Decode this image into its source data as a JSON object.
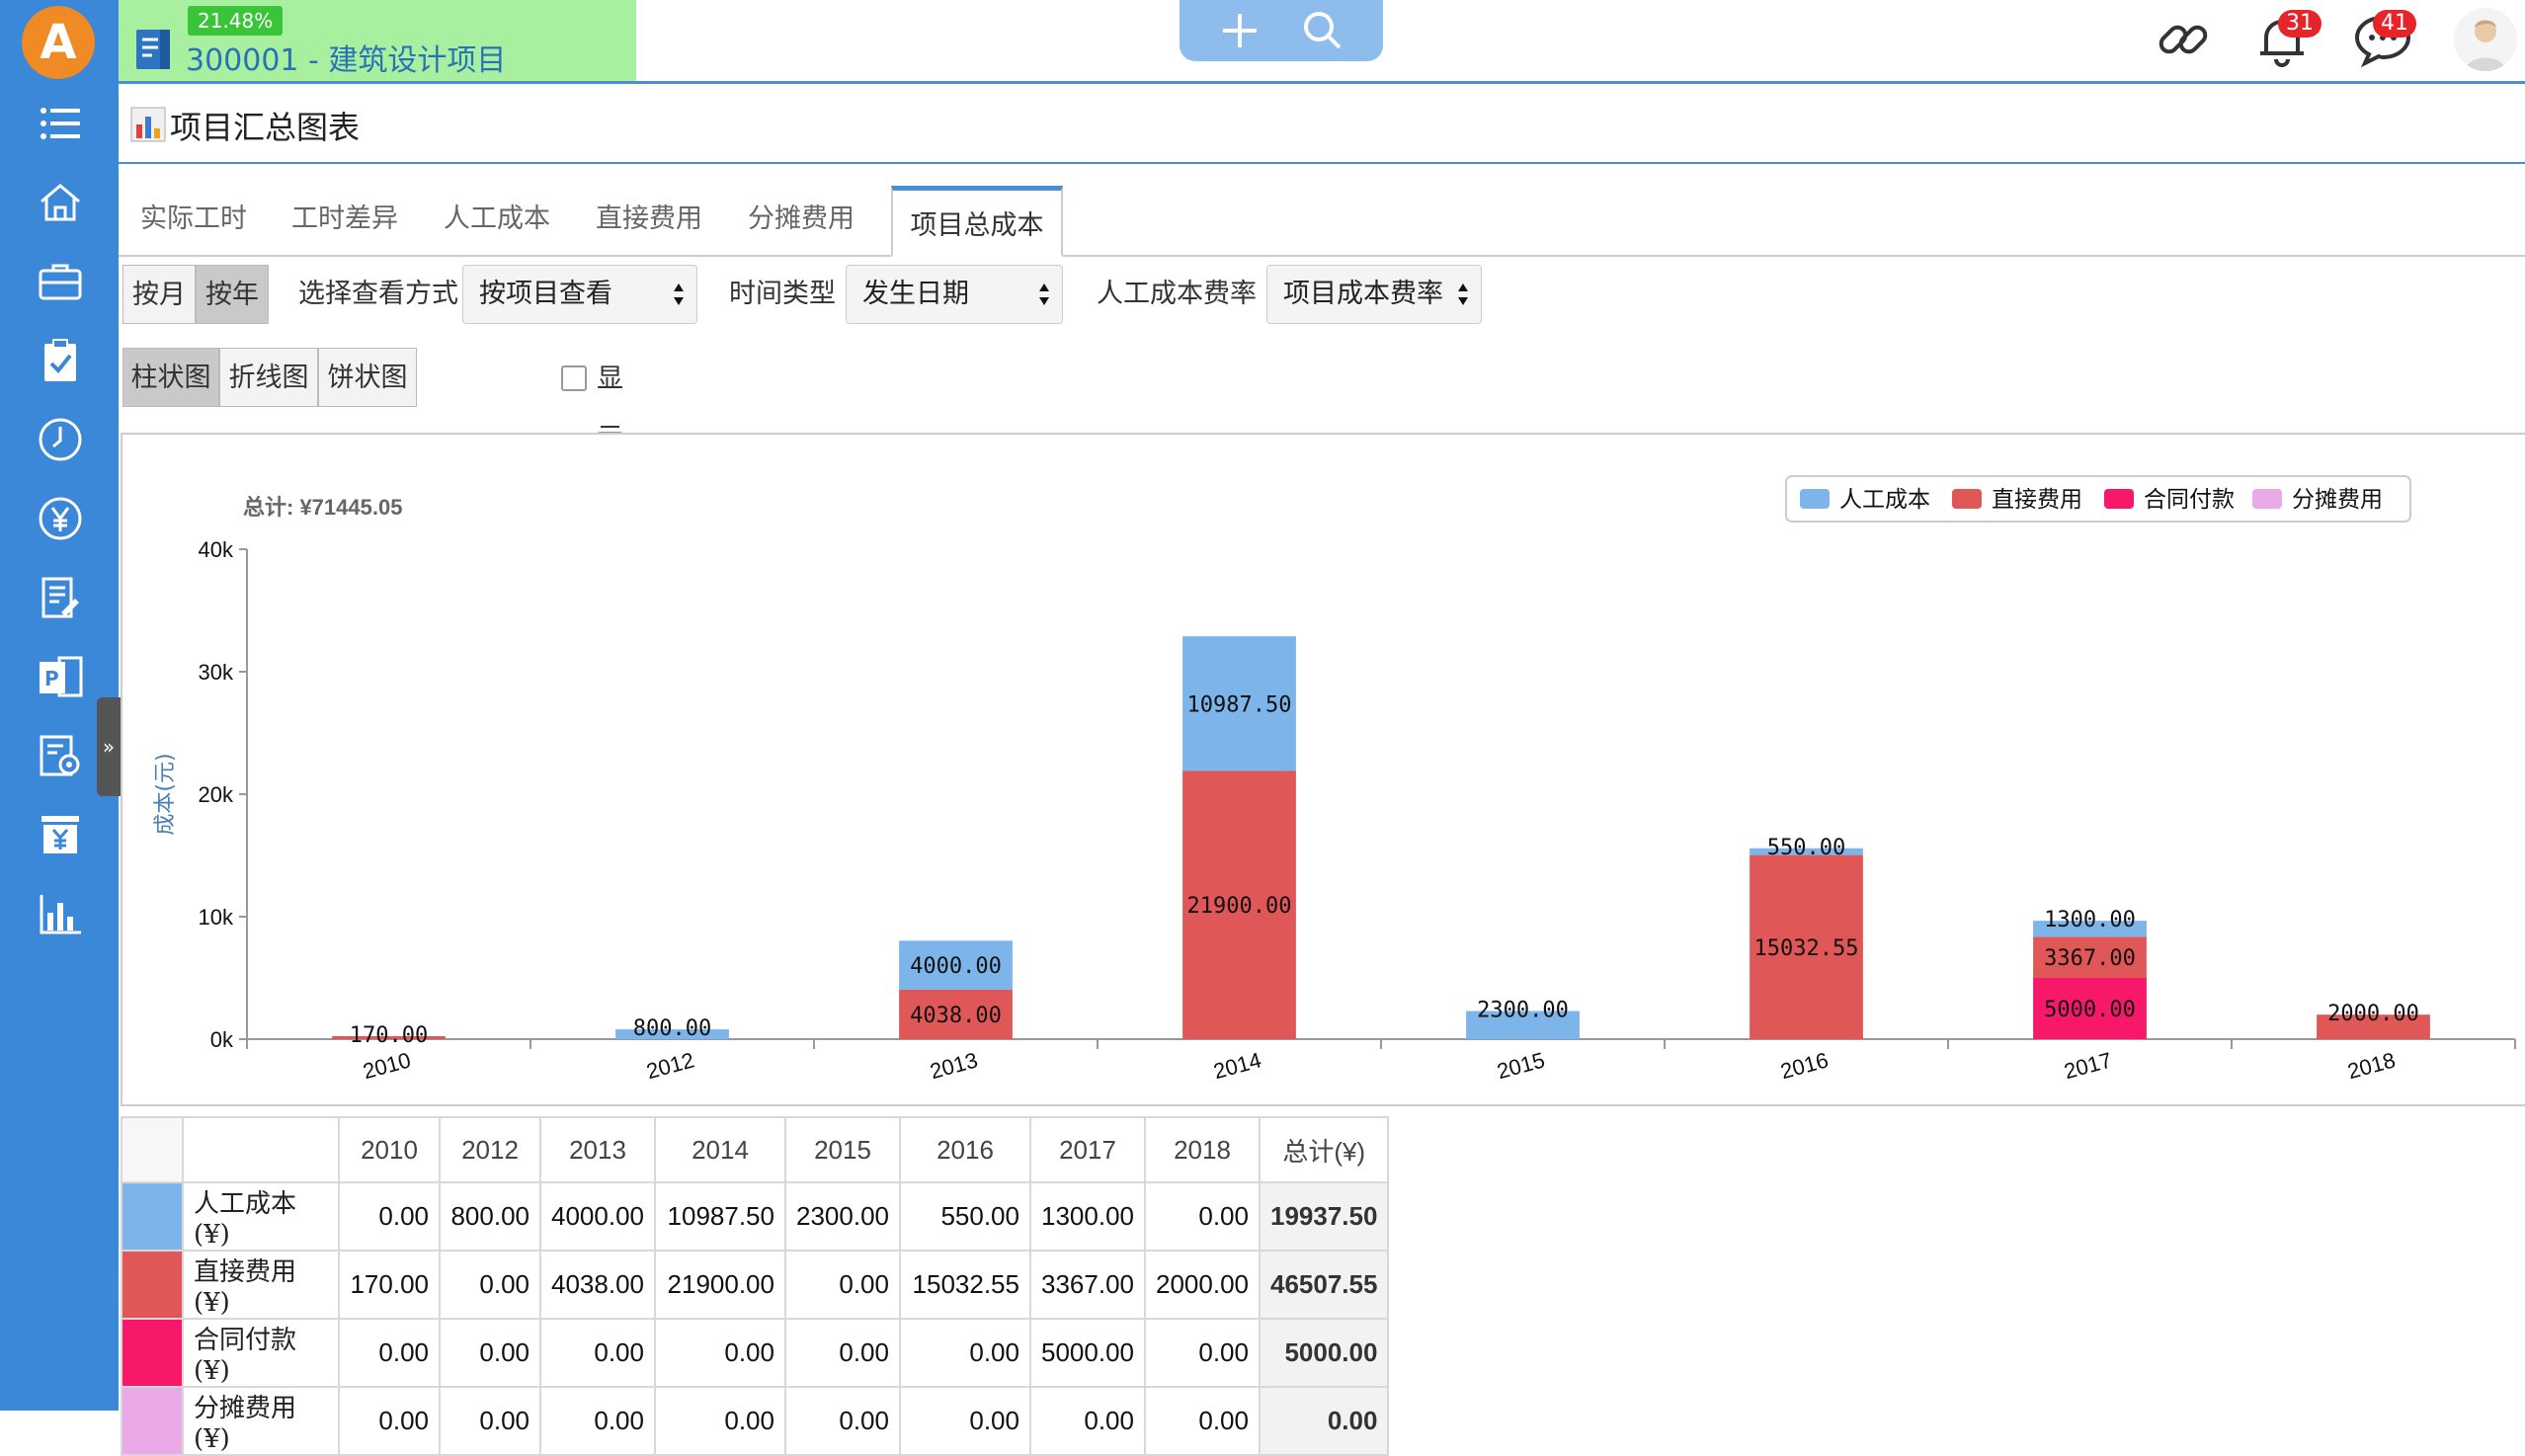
{
  "app": {
    "progress_label": "21.48%",
    "project_title": "300001 - 建筑设计项目",
    "notifications_count": "31",
    "messages_count": "41"
  },
  "page": {
    "title": "项目汇总图表"
  },
  "tabs": [
    {
      "label": "实际工时"
    },
    {
      "label": "工时差异"
    },
    {
      "label": "人工成本"
    },
    {
      "label": "直接费用"
    },
    {
      "label": "分摊费用"
    },
    {
      "label": "项目总成本",
      "active": true
    }
  ],
  "filters": {
    "period_month": "按月",
    "period_year": "按年",
    "view_mode_label": "选择查看方式",
    "view_mode_value": "按项目查看",
    "time_type_label": "时间类型",
    "time_type_value": "发生日期",
    "rate_label": "人工成本费率",
    "rate_value": "项目成本费率"
  },
  "chart_types": {
    "bar": "柱状图",
    "line": "折线图",
    "pie": "饼状图",
    "cumulative_label": "显示累积数据"
  },
  "colors": {
    "labor": "#7db4e9",
    "direct": "#e05757",
    "contract": "#f7186a",
    "allocated": "#eaaae8"
  },
  "chart_data": {
    "type": "bar",
    "stacked": true,
    "total_label": "总计: ¥71445.05",
    "ylabel": "成本(元)",
    "ylim": [
      0,
      40000
    ],
    "yticks": [
      "0k",
      "10k",
      "20k",
      "30k",
      "40k"
    ],
    "categories": [
      "2010",
      "2012",
      "2013",
      "2014",
      "2015",
      "2016",
      "2017",
      "2018"
    ],
    "legend_position": "top-right",
    "series": [
      {
        "name": "人工成本",
        "color": "#7db4e9",
        "values": [
          0,
          800,
          4000,
          10987.5,
          2300,
          550,
          1300,
          0
        ],
        "labels": [
          "",
          "800.00",
          "4000.00",
          "10987.50",
          "2300.00",
          "550.00",
          "1300.00",
          ""
        ]
      },
      {
        "name": "直接费用",
        "color": "#e05757",
        "values": [
          170,
          0,
          4038,
          21900,
          0,
          15032.55,
          3367,
          2000
        ],
        "labels": [
          "170.00",
          "",
          "4038.00",
          "21900.00",
          "",
          "15032.55",
          "3367.00",
          "2000.00"
        ]
      },
      {
        "name": "合同付款",
        "color": "#f7186a",
        "values": [
          0,
          0,
          0,
          0,
          0,
          0,
          5000,
          0
        ],
        "labels": [
          "",
          "",
          "",
          "",
          "",
          "",
          "5000.00",
          ""
        ]
      },
      {
        "name": "分摊费用",
        "color": "#eaaae8",
        "values": [
          0,
          0,
          0,
          0,
          0,
          0,
          0,
          0
        ],
        "labels": [
          "",
          "",
          "",
          "",
          "",
          "",
          "",
          ""
        ]
      }
    ]
  },
  "table": {
    "headers": [
      "2010",
      "2012",
      "2013",
      "2014",
      "2015",
      "2016",
      "2017",
      "2018",
      "总计(¥)"
    ],
    "rows": [
      {
        "label": "人工成本(¥)",
        "color": "#7db4e9",
        "cells": [
          "0.00",
          "800.00",
          "4000.00",
          "10987.50",
          "2300.00",
          "550.00",
          "1300.00",
          "0.00"
        ],
        "total": "19937.50"
      },
      {
        "label": "直接费用(¥)",
        "color": "#e05757",
        "cells": [
          "170.00",
          "0.00",
          "4038.00",
          "21900.00",
          "0.00",
          "15032.55",
          "3367.00",
          "2000.00"
        ],
        "total": "46507.55"
      },
      {
        "label": "合同付款(¥)",
        "color": "#f7186a",
        "cells": [
          "0.00",
          "0.00",
          "0.00",
          "0.00",
          "0.00",
          "0.00",
          "5000.00",
          "0.00"
        ],
        "total": "5000.00"
      },
      {
        "label": "分摊费用(¥)",
        "color": "#eaaae8",
        "cells": [
          "0.00",
          "0.00",
          "0.00",
          "0.00",
          "0.00",
          "0.00",
          "0.00",
          "0.00"
        ],
        "total": "0.00"
      }
    ]
  },
  "icons": {
    "sidebar": [
      "menu-icon",
      "home-icon",
      "briefcase-icon",
      "clipboard-check-icon",
      "clock-icon",
      "yen-circle-icon",
      "document-edit-icon",
      "project-icon",
      "settings-doc-icon",
      "yen-box-icon",
      "bar-chart-icon"
    ],
    "topbar": [
      "link-icon",
      "bell-icon",
      "chat-icon",
      "user-avatar"
    ]
  }
}
